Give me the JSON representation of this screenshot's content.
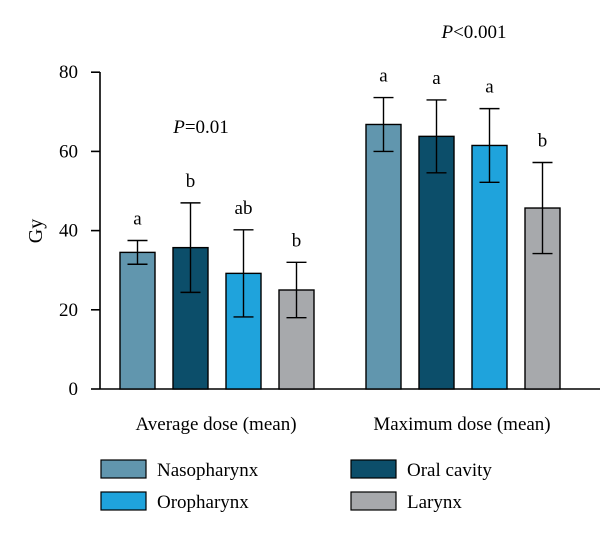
{
  "chart_data": {
    "type": "bar",
    "ylabel": "Gy",
    "ylim": [
      0,
      80
    ],
    "yticks": [
      "0",
      "20",
      "40",
      "60",
      "80"
    ],
    "grid": false,
    "legend_position": "bottom",
    "categories": [
      "Average dose (mean)",
      "Maximum dose (mean)"
    ],
    "series": [
      {
        "name": "Nasopharynx",
        "color": "#6196AE",
        "values": [
          34.5,
          66.8
        ],
        "error": [
          3.0,
          6.8
        ],
        "significance": [
          "a",
          "a"
        ]
      },
      {
        "name": "Oral cavity",
        "color": "#0C4E6A",
        "values": [
          35.7,
          63.8
        ],
        "error": [
          11.3,
          9.2
        ],
        "significance": [
          "b",
          "a"
        ]
      },
      {
        "name": "Oropharynx",
        "color": "#1FA3DC",
        "values": [
          29.2,
          61.5
        ],
        "error": [
          11.0,
          9.3
        ],
        "significance": [
          "ab",
          "a"
        ]
      },
      {
        "name": "Larynx",
        "color": "#A7A9AC",
        "values": [
          25.0,
          45.7
        ],
        "error": [
          7.0,
          11.5
        ],
        "significance": [
          "b",
          "b"
        ]
      }
    ],
    "p_values": [
      {
        "italic": "P",
        "text": "=0.01"
      },
      {
        "italic": "P",
        "text": "<0.001"
      }
    ]
  }
}
